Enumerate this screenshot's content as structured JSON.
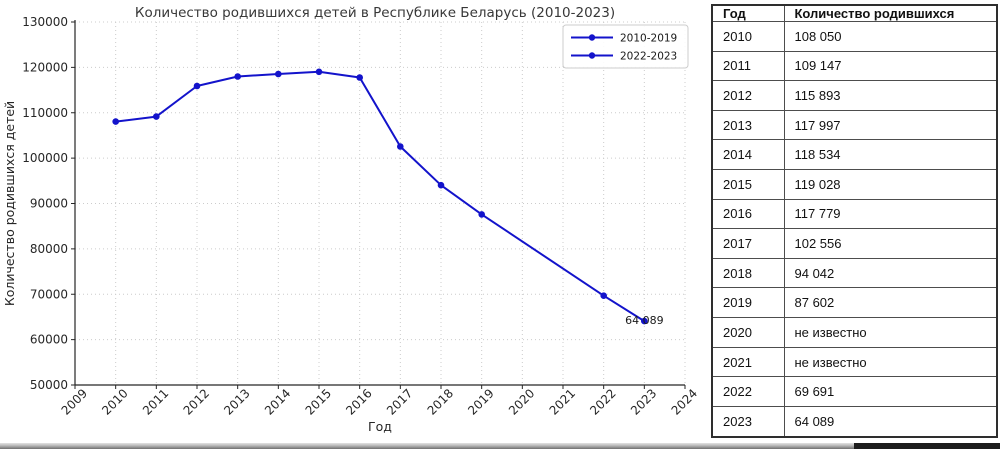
{
  "chart_data": {
    "type": "line",
    "title": "Количество родившихся детей в Республике Беларусь (2010-2023)",
    "xlabel": "Год",
    "ylabel": "Количество родившихся детей",
    "xlim": [
      2009,
      2024
    ],
    "ylim": [
      50000,
      130000
    ],
    "xticks": [
      2009,
      2010,
      2011,
      2012,
      2013,
      2014,
      2015,
      2016,
      2017,
      2018,
      2019,
      2020,
      2021,
      2022,
      2023,
      2024
    ],
    "yticks": [
      50000,
      60000,
      70000,
      80000,
      90000,
      100000,
      110000,
      120000,
      130000
    ],
    "grid": true,
    "grid_style": "dotted",
    "legend_position": "upper-right",
    "line_color": "#1313cb",
    "series": [
      {
        "name": "2010-2019",
        "x": [
          2010,
          2011,
          2012,
          2013,
          2014,
          2015,
          2016,
          2017,
          2018,
          2019
        ],
        "values": [
          108050,
          109147,
          115893,
          117997,
          118534,
          119028,
          117779,
          102556,
          94042,
          87602
        ]
      },
      {
        "name": "2022-2023",
        "x": [
          2022,
          2023
        ],
        "values": [
          69691,
          64089
        ]
      }
    ],
    "connect_series": true,
    "annotations": [
      {
        "text": "64 089",
        "x": 2023,
        "y": 64089
      }
    ]
  },
  "table": {
    "headers": [
      "Год",
      "Количество родившихся"
    ],
    "rows": [
      [
        "2010",
        "108 050"
      ],
      [
        "2011",
        "109 147"
      ],
      [
        "2012",
        "115 893"
      ],
      [
        "2013",
        "117 997"
      ],
      [
        "2014",
        "118 534"
      ],
      [
        "2015",
        "119 028"
      ],
      [
        "2016",
        "117 779"
      ],
      [
        "2017",
        "102 556"
      ],
      [
        "2018",
        "94 042"
      ],
      [
        "2019",
        "87 602"
      ],
      [
        "2020",
        "не известно"
      ],
      [
        "2021",
        "не известно"
      ],
      [
        "2022",
        "69 691"
      ],
      [
        "2023",
        "64 089"
      ]
    ]
  },
  "colors": {
    "line": "#1313cb",
    "grid": "#cccccc",
    "axis": "#262626",
    "title_text": "#383838",
    "legend_border": "#cccccc",
    "table_border": "#2e2e2e",
    "annotation_text": "#1a1a1a"
  }
}
